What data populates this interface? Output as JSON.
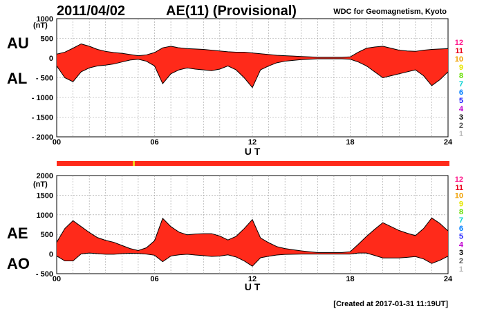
{
  "header": {
    "date": "2011/04/02",
    "title": "AE(11) (Provisional)",
    "source": "WDC for Geomagnetism, Kyoto"
  },
  "footer": {
    "created": "[Created at 2017-01-31 11:19UT]"
  },
  "colors": {
    "fill": "#ff2a1a",
    "outline": "#000000",
    "grid": "#9a9a9a",
    "bar": "#ff2a1a",
    "bar_marker": "#f0d020"
  },
  "station_scale": {
    "labels": [
      "12",
      "11",
      "10",
      "9",
      "8",
      "7",
      "6",
      "5",
      "4",
      "3",
      "2",
      "1"
    ],
    "colors": [
      "#ff1a8c",
      "#e8001a",
      "#f0a000",
      "#e6e600",
      "#66dd00",
      "#00d0d0",
      "#0080ff",
      "#2020ff",
      "#c000d0",
      "#000000",
      "#555555",
      "#bbbbbb"
    ]
  },
  "chart_data": [
    {
      "type": "area",
      "panel": "AU/AL",
      "left_labels": [
        "AU",
        "AL"
      ],
      "xlabel": "U T",
      "ylabel": "(nT)",
      "xlim": [
        0,
        24
      ],
      "ylim": [
        -2000,
        1000
      ],
      "xticks": [
        "00",
        "06",
        "12",
        "18",
        "24"
      ],
      "yticks": [
        "1000",
        "500",
        "0",
        "- 500",
        "- 1000",
        "- 1500",
        "- 2000"
      ],
      "x": [
        0,
        0.5,
        1,
        1.5,
        2,
        2.5,
        3,
        3.5,
        4,
        4.5,
        5,
        5.5,
        6,
        6.5,
        7,
        7.5,
        8,
        8.5,
        9,
        9.5,
        10,
        10.5,
        11,
        11.5,
        12,
        12.5,
        13,
        13.5,
        14,
        14.5,
        15,
        15.5,
        16,
        16.5,
        17,
        17.5,
        18,
        18.5,
        19,
        19.5,
        20,
        20.5,
        21,
        21.5,
        22,
        22.5,
        23,
        23.5,
        24
      ],
      "series": [
        {
          "name": "AU",
          "values": [
            100,
            150,
            250,
            360,
            300,
            220,
            170,
            140,
            120,
            90,
            60,
            80,
            140,
            260,
            300,
            260,
            240,
            230,
            220,
            200,
            180,
            160,
            150,
            150,
            130,
            110,
            90,
            70,
            60,
            50,
            40,
            30,
            20,
            20,
            20,
            20,
            30,
            150,
            250,
            280,
            300,
            250,
            200,
            180,
            170,
            200,
            220,
            230,
            240
          ]
        },
        {
          "name": "AL",
          "values": [
            -200,
            -500,
            -600,
            -350,
            -250,
            -200,
            -180,
            -150,
            -100,
            -50,
            -30,
            -80,
            -200,
            -650,
            -400,
            -300,
            -250,
            -280,
            -300,
            -320,
            -280,
            -200,
            -300,
            -500,
            -750,
            -300,
            -200,
            -120,
            -80,
            -60,
            -40,
            -30,
            -20,
            -20,
            -20,
            -20,
            -30,
            -100,
            -200,
            -350,
            -500,
            -450,
            -400,
            -350,
            -300,
            -450,
            -700,
            -550,
            -350
          ]
        }
      ]
    },
    {
      "type": "area",
      "panel": "AE/AO",
      "left_labels": [
        "AE",
        "AO"
      ],
      "xlabel": "U T",
      "ylabel": "(nT)",
      "xlim": [
        0,
        24
      ],
      "ylim": [
        -500,
        2000
      ],
      "xticks": [
        "00",
        "06",
        "12",
        "18",
        "24"
      ],
      "yticks": [
        "2000",
        "1500",
        "1000",
        "500",
        "0",
        "- 500"
      ],
      "x": [
        0,
        0.5,
        1,
        1.5,
        2,
        2.5,
        3,
        3.5,
        4,
        4.5,
        5,
        5.5,
        6,
        6.5,
        7,
        7.5,
        8,
        8.5,
        9,
        9.5,
        10,
        10.5,
        11,
        11.5,
        12,
        12.5,
        13,
        13.5,
        14,
        14.5,
        15,
        15.5,
        16,
        16.5,
        17,
        17.5,
        18,
        18.5,
        19,
        19.5,
        20,
        20.5,
        21,
        21.5,
        22,
        22.5,
        23,
        23.5,
        24
      ],
      "series": [
        {
          "name": "AE",
          "values": [
            300,
            650,
            850,
            700,
            550,
            420,
            350,
            300,
            220,
            140,
            90,
            160,
            340,
            910,
            700,
            560,
            490,
            510,
            520,
            520,
            460,
            360,
            450,
            650,
            880,
            410,
            290,
            190,
            140,
            110,
            80,
            60,
            40,
            40,
            40,
            40,
            60,
            250,
            450,
            630,
            800,
            700,
            600,
            530,
            470,
            650,
            920,
            780,
            590
          ]
        },
        {
          "name": "AO",
          "values": [
            -50,
            -175,
            -175,
            5,
            25,
            10,
            -5,
            -5,
            10,
            20,
            15,
            0,
            -30,
            -195,
            -50,
            -20,
            -5,
            -25,
            -40,
            -60,
            -50,
            -20,
            -75,
            -175,
            -310,
            -95,
            -55,
            -25,
            -10,
            -5,
            0,
            0,
            0,
            0,
            0,
            0,
            0,
            25,
            25,
            -35,
            -100,
            -100,
            -100,
            -85,
            -65,
            -125,
            -240,
            -160,
            -55
          ]
        }
      ]
    }
  ]
}
